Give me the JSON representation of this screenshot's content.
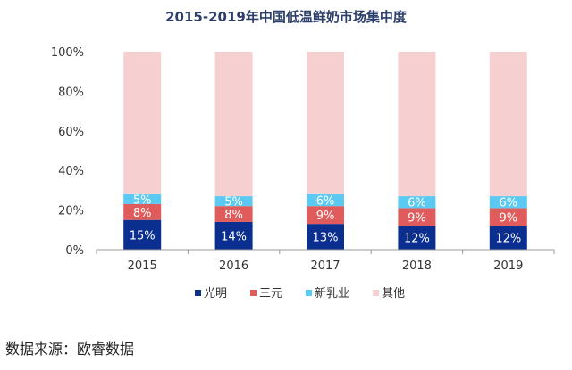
{
  "chart_data": {
    "type": "bar",
    "stacked": true,
    "title": "2015-2019年中国低温鲜奶市场集中度",
    "categories": [
      "2015",
      "2016",
      "2017",
      "2018",
      "2019"
    ],
    "series": [
      {
        "name": "光明",
        "values": [
          15,
          14,
          13,
          12,
          12
        ],
        "color": "#0b2f8f",
        "labels": [
          "15%",
          "14%",
          "13%",
          "12%",
          "12%"
        ]
      },
      {
        "name": "三元",
        "values": [
          8,
          8,
          9,
          9,
          9
        ],
        "color": "#e05b5b",
        "labels": [
          "8%",
          "8%",
          "9%",
          "9%",
          "9%"
        ]
      },
      {
        "name": "新乳业",
        "values": [
          5,
          5,
          6,
          6,
          6
        ],
        "color": "#5cc9f2",
        "labels": [
          "5%",
          "5%",
          "6%",
          "6%",
          "6%"
        ]
      },
      {
        "name": "其他",
        "values": [
          72,
          73,
          72,
          73,
          73
        ],
        "color": "#f6d0d0",
        "labels": [
          "",
          "",
          "",
          "",
          ""
        ]
      }
    ],
    "ylim": [
      0,
      100
    ],
    "yticks": [
      "0%",
      "20%",
      "40%",
      "60%",
      "80%",
      "100%"
    ],
    "legend_position": "bottom",
    "grid": false
  },
  "source": "数据来源：欧睿数据"
}
